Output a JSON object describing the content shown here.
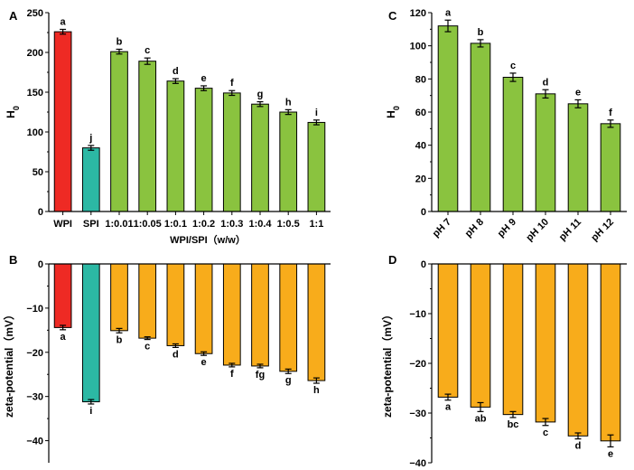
{
  "colors": {
    "red": "#ee2a24",
    "teal": "#2cb8a4",
    "green": "#8ac33f",
    "orange": "#f8ac1b"
  },
  "chart_data": [
    {
      "panel": "A",
      "type": "bar",
      "categories": [
        "WPI",
        "SPI",
        "1:0.01",
        "1:0.05",
        "1:0.1",
        "1:0.2",
        "1:0.3",
        "1:0.4",
        "1:0.5",
        "1:1"
      ],
      "values": [
        226,
        80,
        201,
        189,
        164,
        155,
        149,
        135,
        125,
        112
      ],
      "errors": [
        3,
        3,
        3,
        4,
        3,
        3,
        3,
        3,
        3,
        3
      ],
      "letters": [
        "a",
        "j",
        "b",
        "c",
        "d",
        "e",
        "f",
        "g",
        "h",
        "i"
      ],
      "bar_colors": [
        "red",
        "teal",
        "green",
        "green",
        "green",
        "green",
        "green",
        "green",
        "green",
        "green"
      ],
      "ylabel": "H0",
      "xlabel": "WPI/SPI（w/w）",
      "ylim": [
        0,
        250
      ],
      "yticks": [
        0,
        50,
        100,
        150,
        200,
        250
      ],
      "x_labels_rotated": false
    },
    {
      "panel": "B",
      "type": "bar",
      "categories": [
        "WPI",
        "SPI",
        "1:0.01",
        "1:0.05",
        "1:0.1",
        "1:0.2",
        "1:0.3",
        "1:0.4",
        "1:0.5",
        "1:1"
      ],
      "values": [
        -14.4,
        -31.2,
        -15.1,
        -16.8,
        -18.5,
        -20.3,
        -22.9,
        -23.1,
        -24.3,
        -26.4
      ],
      "errors": [
        0.5,
        0.5,
        0.5,
        0.3,
        0.4,
        0.4,
        0.4,
        0.4,
        0.5,
        0.6
      ],
      "letters": [
        "a",
        "i",
        "b",
        "c",
        "d",
        "e",
        "f",
        "fg",
        "g",
        "h"
      ],
      "bar_colors": [
        "red",
        "teal",
        "orange",
        "orange",
        "orange",
        "orange",
        "orange",
        "orange",
        "orange",
        "orange"
      ],
      "ylabel": "zeta-potential（mV）",
      "xlabel": "",
      "ylim": [
        -45,
        0
      ],
      "yticks": [
        0,
        -10,
        -20,
        -30,
        -40
      ]
    },
    {
      "panel": "C",
      "type": "bar",
      "categories": [
        "pH 7",
        "pH 8",
        "pH 9",
        "pH 10",
        "pH 11",
        "pH 12"
      ],
      "values": [
        112,
        101.5,
        81,
        71,
        65,
        53
      ],
      "errors": [
        3.5,
        2.2,
        2.5,
        2.5,
        2.4,
        2.2
      ],
      "letters": [
        "a",
        "b",
        "c",
        "d",
        "e",
        "f"
      ],
      "bar_colors": [
        "green",
        "green",
        "green",
        "green",
        "green",
        "green"
      ],
      "ylabel": "H0",
      "xlabel": "",
      "ylim": [
        0,
        120
      ],
      "yticks": [
        0,
        20,
        40,
        60,
        80,
        100,
        120
      ],
      "x_labels_rotated": true
    },
    {
      "panel": "D",
      "type": "bar",
      "categories": [
        "pH 7",
        "pH 8",
        "pH 9",
        "pH 10",
        "pH 11",
        "pH 12"
      ],
      "values": [
        -26.8,
        -28.8,
        -30.3,
        -31.8,
        -34.6,
        -35.6
      ],
      "errors": [
        0.6,
        0.9,
        0.6,
        0.7,
        0.6,
        1.2
      ],
      "letters": [
        "a",
        "ab",
        "bc",
        "c",
        "d",
        "e"
      ],
      "bar_colors": [
        "orange",
        "orange",
        "orange",
        "orange",
        "orange",
        "orange"
      ],
      "ylabel": "zeta-potential（mV）",
      "xlabel": "",
      "ylim": [
        -40,
        0
      ],
      "yticks": [
        0,
        -10,
        -20,
        -30,
        -40
      ]
    }
  ]
}
